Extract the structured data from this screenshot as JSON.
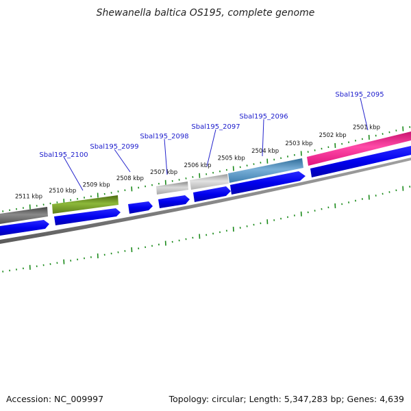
{
  "title": "Shewanella baltica OS195, complete genome",
  "accession_text": "Accession: NC_009997",
  "summary_text": "Topology: circular; Length: 5,347,283 bp; Genes: 4,639",
  "kbp_labels": [
    "2511 kbp",
    "2510 kbp",
    "2509 kbp",
    "2508 kbp",
    "2507 kbp",
    "2506 kbp",
    "2505 kbp",
    "2504 kbp",
    "2503 kbp",
    "2502 kbp",
    "2501 kbp"
  ],
  "gene_labels": [
    "Sbal195_2100",
    "Sbal195_2099",
    "Sbal195_2098",
    "Sbal195_2097",
    "Sbal195_2096",
    "Sbal195_2095"
  ],
  "colors": {
    "ticks": "#1a8a1a",
    "cds": "#0000ee",
    "backbone": "#808080",
    "label_lines": "#2222cc",
    "feature_pink": "#ee1a8c",
    "feature_steelblue": "#4a88bb",
    "feature_silver": "#b8b8b8",
    "feature_green": "#6b8e23",
    "feature_darkgray": "#666666"
  }
}
